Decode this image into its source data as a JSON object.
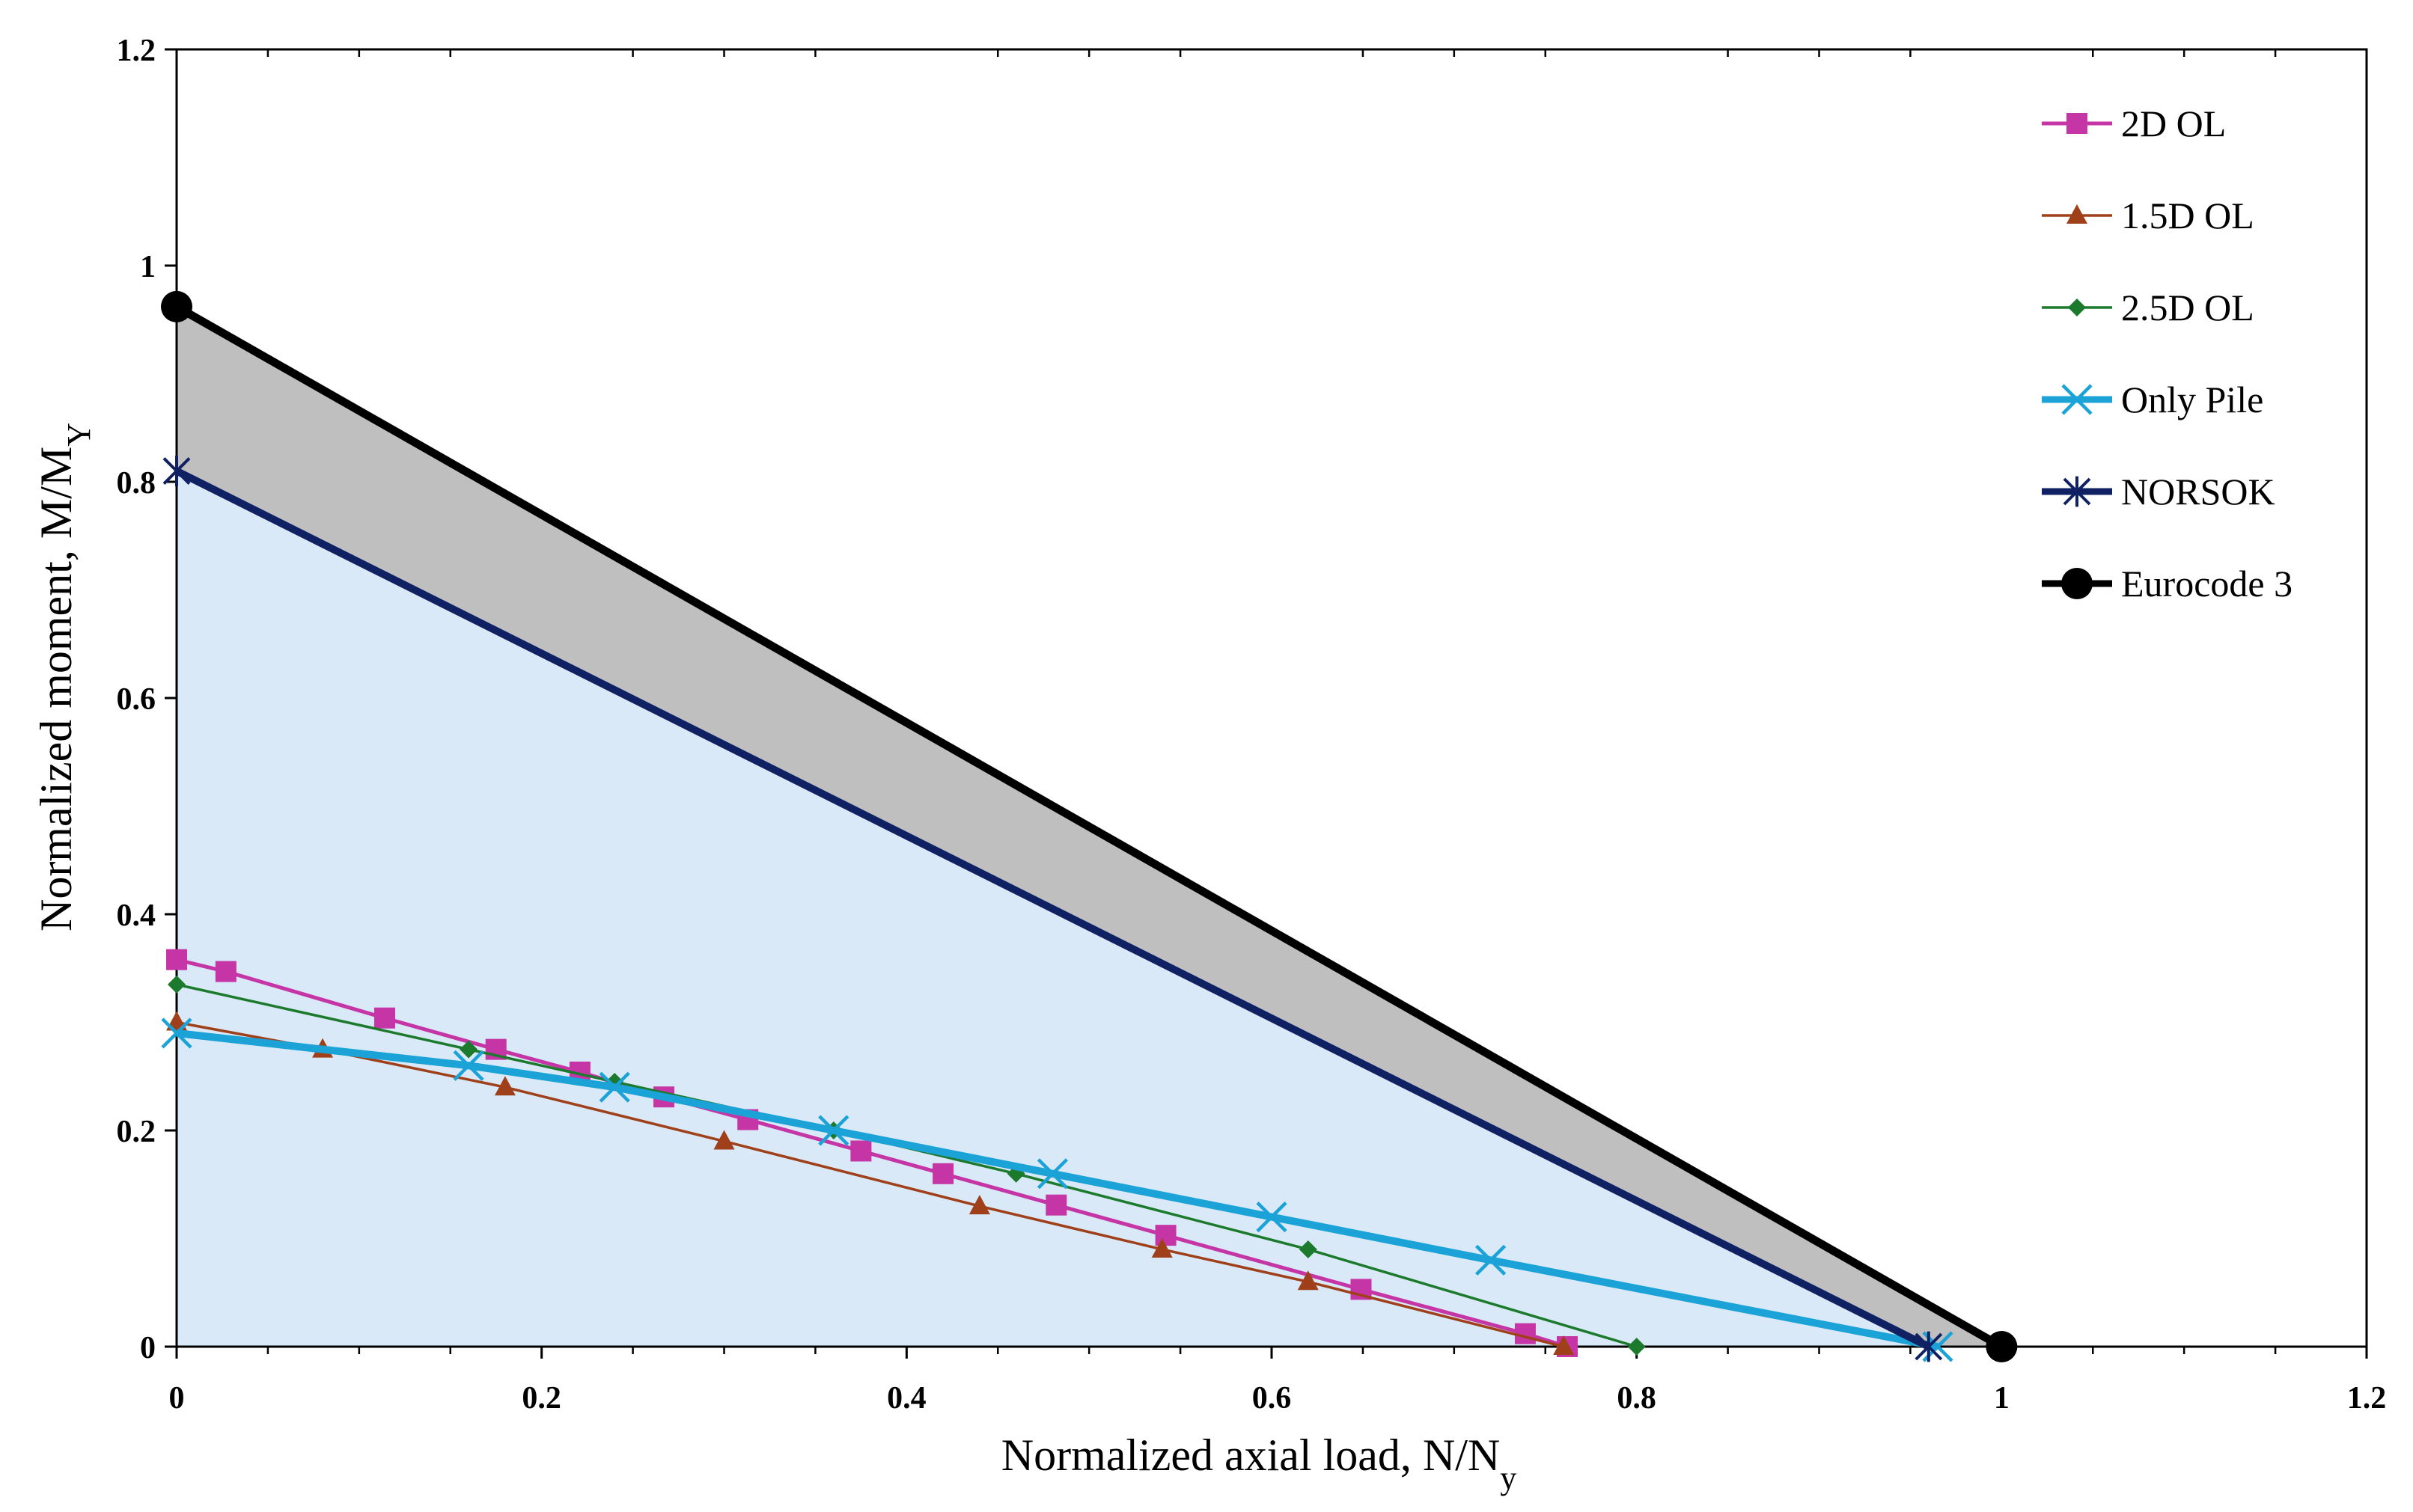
{
  "chart_data": {
    "type": "line",
    "title": "",
    "xlabel": "Normalized axial load, N/N",
    "xlabel_sub": "y",
    "ylabel": "Normalized moment, M/M",
    "ylabel_sub": "Y",
    "xlim": [
      0,
      1.2
    ],
    "ylim": [
      0,
      1.2
    ],
    "x_ticks": [
      "0",
      "0.2",
      "0.4",
      "0.6",
      "0.8",
      "1",
      "1.2"
    ],
    "y_ticks": [
      "0",
      "0.2",
      "0.4",
      "0.6",
      "0.8",
      "1",
      "1.2"
    ],
    "grid": false,
    "legend_position": "top-right",
    "shaded_regions": [
      {
        "name": "eurocode-norsok-band",
        "color": "#bfbfbf",
        "between": [
          "Eurocode 3",
          "NORSOK"
        ]
      },
      {
        "name": "norsok-safe-region",
        "color": "#d9e9f7",
        "under": "NORSOK"
      }
    ],
    "series": [
      {
        "name": "2D OL",
        "color": "#c535a6",
        "marker": "square",
        "line_width": 5,
        "x": [
          0,
          0.027,
          0.114,
          0.175,
          0.221,
          0.267,
          0.313,
          0.375,
          0.42,
          0.482,
          0.542,
          0.649,
          0.739,
          0.762
        ],
        "y": [
          0.358,
          0.347,
          0.304,
          0.275,
          0.254,
          0.231,
          0.21,
          0.181,
          0.16,
          0.131,
          0.103,
          0.053,
          0.012,
          0
        ]
      },
      {
        "name": "1.5D OL",
        "color": "#a0401a",
        "marker": "triangle",
        "line_width": 3.5,
        "x": [
          0,
          0.08,
          0.18,
          0.3,
          0.44,
          0.54,
          0.62,
          0.76
        ],
        "y": [
          0.3,
          0.275,
          0.24,
          0.19,
          0.13,
          0.09,
          0.06,
          0
        ]
      },
      {
        "name": "2.5D OL",
        "color": "#1c7a2c",
        "marker": "diamond",
        "line_width": 3.5,
        "x": [
          0,
          0.16,
          0.24,
          0.36,
          0.46,
          0.62,
          0.8
        ],
        "y": [
          0.335,
          0.275,
          0.245,
          0.2,
          0.16,
          0.09,
          0
        ]
      },
      {
        "name": "Only Pile",
        "color": "#1ba3d8",
        "marker": "x",
        "line_width": 10,
        "x": [
          0,
          0.16,
          0.24,
          0.36,
          0.48,
          0.6,
          0.72,
          0.965
        ],
        "y": [
          0.29,
          0.26,
          0.24,
          0.2,
          0.16,
          0.12,
          0.08,
          0
        ]
      },
      {
        "name": "NORSOK",
        "color": "#0f2163",
        "marker": "star",
        "line_width": 10,
        "x": [
          0,
          0.96
        ],
        "y": [
          0.81,
          0
        ]
      },
      {
        "name": "Eurocode 3",
        "color": "#000000",
        "marker": "circle",
        "line_width": 11,
        "x": [
          0,
          1
        ],
        "y": [
          0.962,
          0
        ]
      }
    ]
  }
}
